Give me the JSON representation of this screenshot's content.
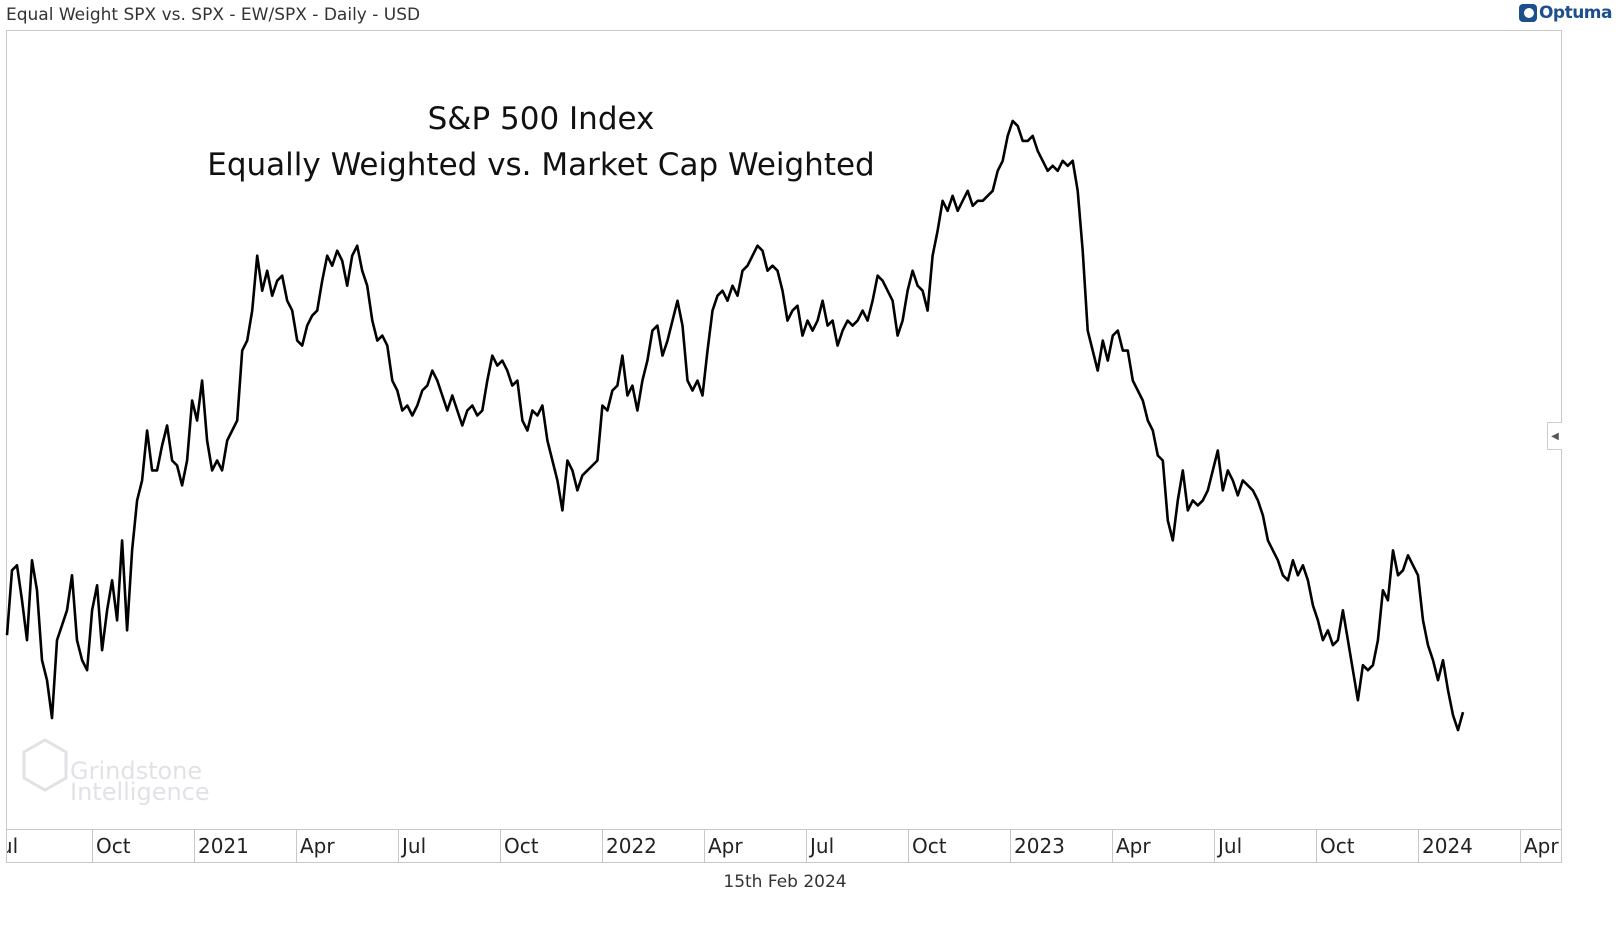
{
  "header": {
    "title": "Equal Weight SPX vs. SPX - EW/SPX - Daily - USD"
  },
  "brand": {
    "name": "Optuma",
    "color": "#1d4f8c"
  },
  "watermark": {
    "line1": "Grindstone",
    "line2": "Intelligence"
  },
  "footer": {
    "date": "15th Feb 2024"
  },
  "chart_data": {
    "type": "line",
    "title": "S&P 500 Index",
    "subtitle": "Equally Weighted vs. Market Cap Weighted",
    "xlabel": "",
    "ylabel": "",
    "series_name": "EW/SPX",
    "line_color": "#000000",
    "x_start": "2020-07-17",
    "x_end": "2024-02-15",
    "x_tick_labels": [
      "Jul",
      "Oct",
      "2021",
      "Apr",
      "Jul",
      "Oct",
      "2022",
      "Apr",
      "Jul",
      "Oct",
      "2023",
      "Apr",
      "Jul",
      "Oct",
      "2024",
      "Apr"
    ],
    "y_axis_shown": false,
    "ylim": [
      0,
      80
    ],
    "grid": false,
    "values": [
      19.5,
      26,
      26.5,
      23,
      19,
      27,
      24,
      17,
      15,
      11.2,
      19,
      20.5,
      22,
      25.5,
      19,
      17,
      16,
      22,
      24.5,
      18,
      22,
      25,
      21,
      29,
      20,
      28,
      33,
      35,
      40,
      36,
      36,
      38.5,
      40.5,
      37,
      36.5,
      34.5,
      37,
      43,
      41,
      45,
      39,
      36,
      37,
      36,
      39,
      40,
      41,
      48,
      49,
      52,
      57.5,
      54,
      56,
      53.5,
      55,
      55.5,
      53,
      52,
      49,
      48.5,
      50.5,
      51.5,
      52,
      55,
      57.5,
      56.5,
      58,
      57,
      54.5,
      57.5,
      58.5,
      56,
      54.5,
      51,
      49,
      49.5,
      48.5,
      45,
      44,
      42,
      42.5,
      41.5,
      42.5,
      44,
      44.5,
      46,
      45,
      43.5,
      42,
      43.5,
      42,
      40.5,
      42,
      42.5,
      41.5,
      42,
      45,
      47.5,
      46.5,
      47,
      46,
      44.5,
      45,
      41,
      40,
      42,
      41.5,
      42.5,
      39,
      37,
      35,
      32,
      37,
      36,
      34,
      35.5,
      36,
      36.5,
      37,
      42.5,
      42,
      44,
      44.5,
      47.5,
      43.5,
      44.5,
      42,
      45,
      47,
      50,
      50.5,
      47.5,
      49,
      51,
      53,
      50.5,
      45,
      44,
      45,
      43.5,
      48,
      52,
      53.5,
      54,
      53,
      54.5,
      53.5,
      56,
      56.5,
      57.5,
      58.5,
      58,
      56,
      56.5,
      56,
      54,
      51,
      52,
      52.5,
      49.5,
      51,
      50,
      51,
      53,
      50.5,
      51,
      48.5,
      50,
      51,
      50.5,
      51,
      52,
      51,
      53,
      55.5,
      55,
      54,
      53,
      49.5,
      51,
      54,
      56,
      54.5,
      54,
      52,
      57.5,
      60,
      63,
      62,
      63.5,
      62,
      63,
      64,
      62.5,
      63,
      63,
      63.5,
      64,
      66,
      67,
      69.5,
      71,
      70.5,
      69,
      69,
      69.5,
      68,
      67,
      66,
      66.5,
      66,
      67,
      66.5,
      67,
      64,
      58,
      50,
      48,
      46,
      49,
      47,
      49.5,
      50,
      48,
      48,
      45,
      44,
      43,
      41,
      40,
      37.5,
      37,
      31,
      29,
      33,
      36,
      32,
      33,
      32.5,
      33,
      34,
      36,
      38,
      34,
      36,
      35,
      33.5,
      35,
      34.5,
      34,
      33,
      31.5,
      29,
      28,
      27,
      25.5,
      25,
      27,
      25.5,
      26.5,
      25,
      22.5,
      21,
      19,
      20,
      18.5,
      19,
      22,
      19,
      16,
      13,
      16.5,
      16,
      16.5,
      19,
      24,
      23,
      28,
      25.5,
      26,
      27.5,
      26.5,
      25.5,
      21,
      18.5,
      17,
      15,
      17,
      14,
      11.5,
      10,
      11.8
    ]
  }
}
